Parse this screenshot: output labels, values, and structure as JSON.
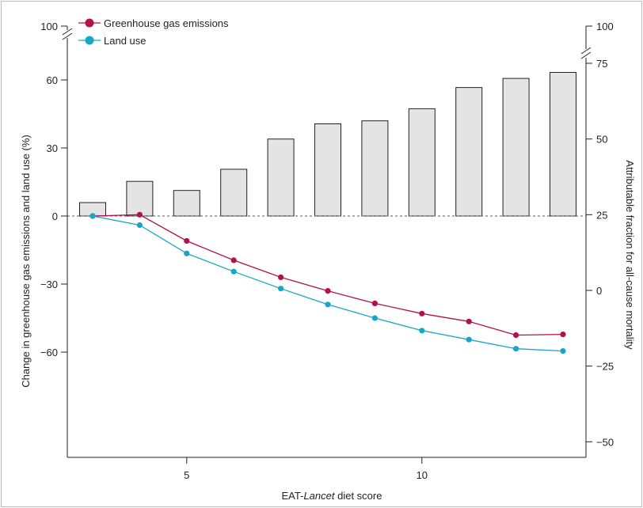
{
  "chart_data": {
    "type": "bar+line",
    "xlabel_parts": [
      "EAT-",
      "Lancet",
      " diet score"
    ],
    "ylabel_left": "Change in greenhouse gas emissions and land use (%)",
    "ylabel_right": "Attributable fraction for all-cause mortality",
    "x": [
      3,
      4,
      5,
      6,
      7,
      8,
      9,
      10,
      11,
      12,
      13
    ],
    "x_ticks": [
      "5",
      "10"
    ],
    "x_tick_values": [
      5,
      10
    ],
    "ylim_left": [
      -65,
      100
    ],
    "yticks_left": [
      "100",
      "60",
      "30",
      "0",
      "−30",
      "−60"
    ],
    "yticks_left_values": [
      100,
      60,
      30,
      0,
      -30,
      -60
    ],
    "ylim_right": [
      -55,
      100
    ],
    "yticks_right": [
      "100",
      "75",
      "50",
      "25",
      "0",
      "−25",
      "−50"
    ],
    "yticks_right_values": [
      100,
      75,
      50,
      25,
      0,
      -25,
      -50
    ],
    "bars": {
      "axis": "right",
      "values": [
        29,
        36,
        33,
        40,
        50,
        55,
        56,
        60,
        67,
        70,
        72
      ],
      "color": "#e4e4e4"
    },
    "series": [
      {
        "name": "Greenhouse gas emissions",
        "color": "#b0124a",
        "axis": "left",
        "values": [
          0,
          0.6,
          -11,
          -19.5,
          -27,
          -33,
          -38.5,
          -43,
          -46.5,
          -52.5,
          -52.2
        ]
      },
      {
        "name": "Land use",
        "color": "#17a7c4",
        "axis": "left",
        "values": [
          0,
          -4,
          -16.5,
          -24.5,
          -32,
          -39,
          -45,
          -50.5,
          -54.5,
          -58.5,
          -59.5
        ]
      }
    ],
    "reference_line": {
      "y": 0,
      "style": "dashed"
    },
    "legend_position": "top-left",
    "axis_break": "top"
  }
}
